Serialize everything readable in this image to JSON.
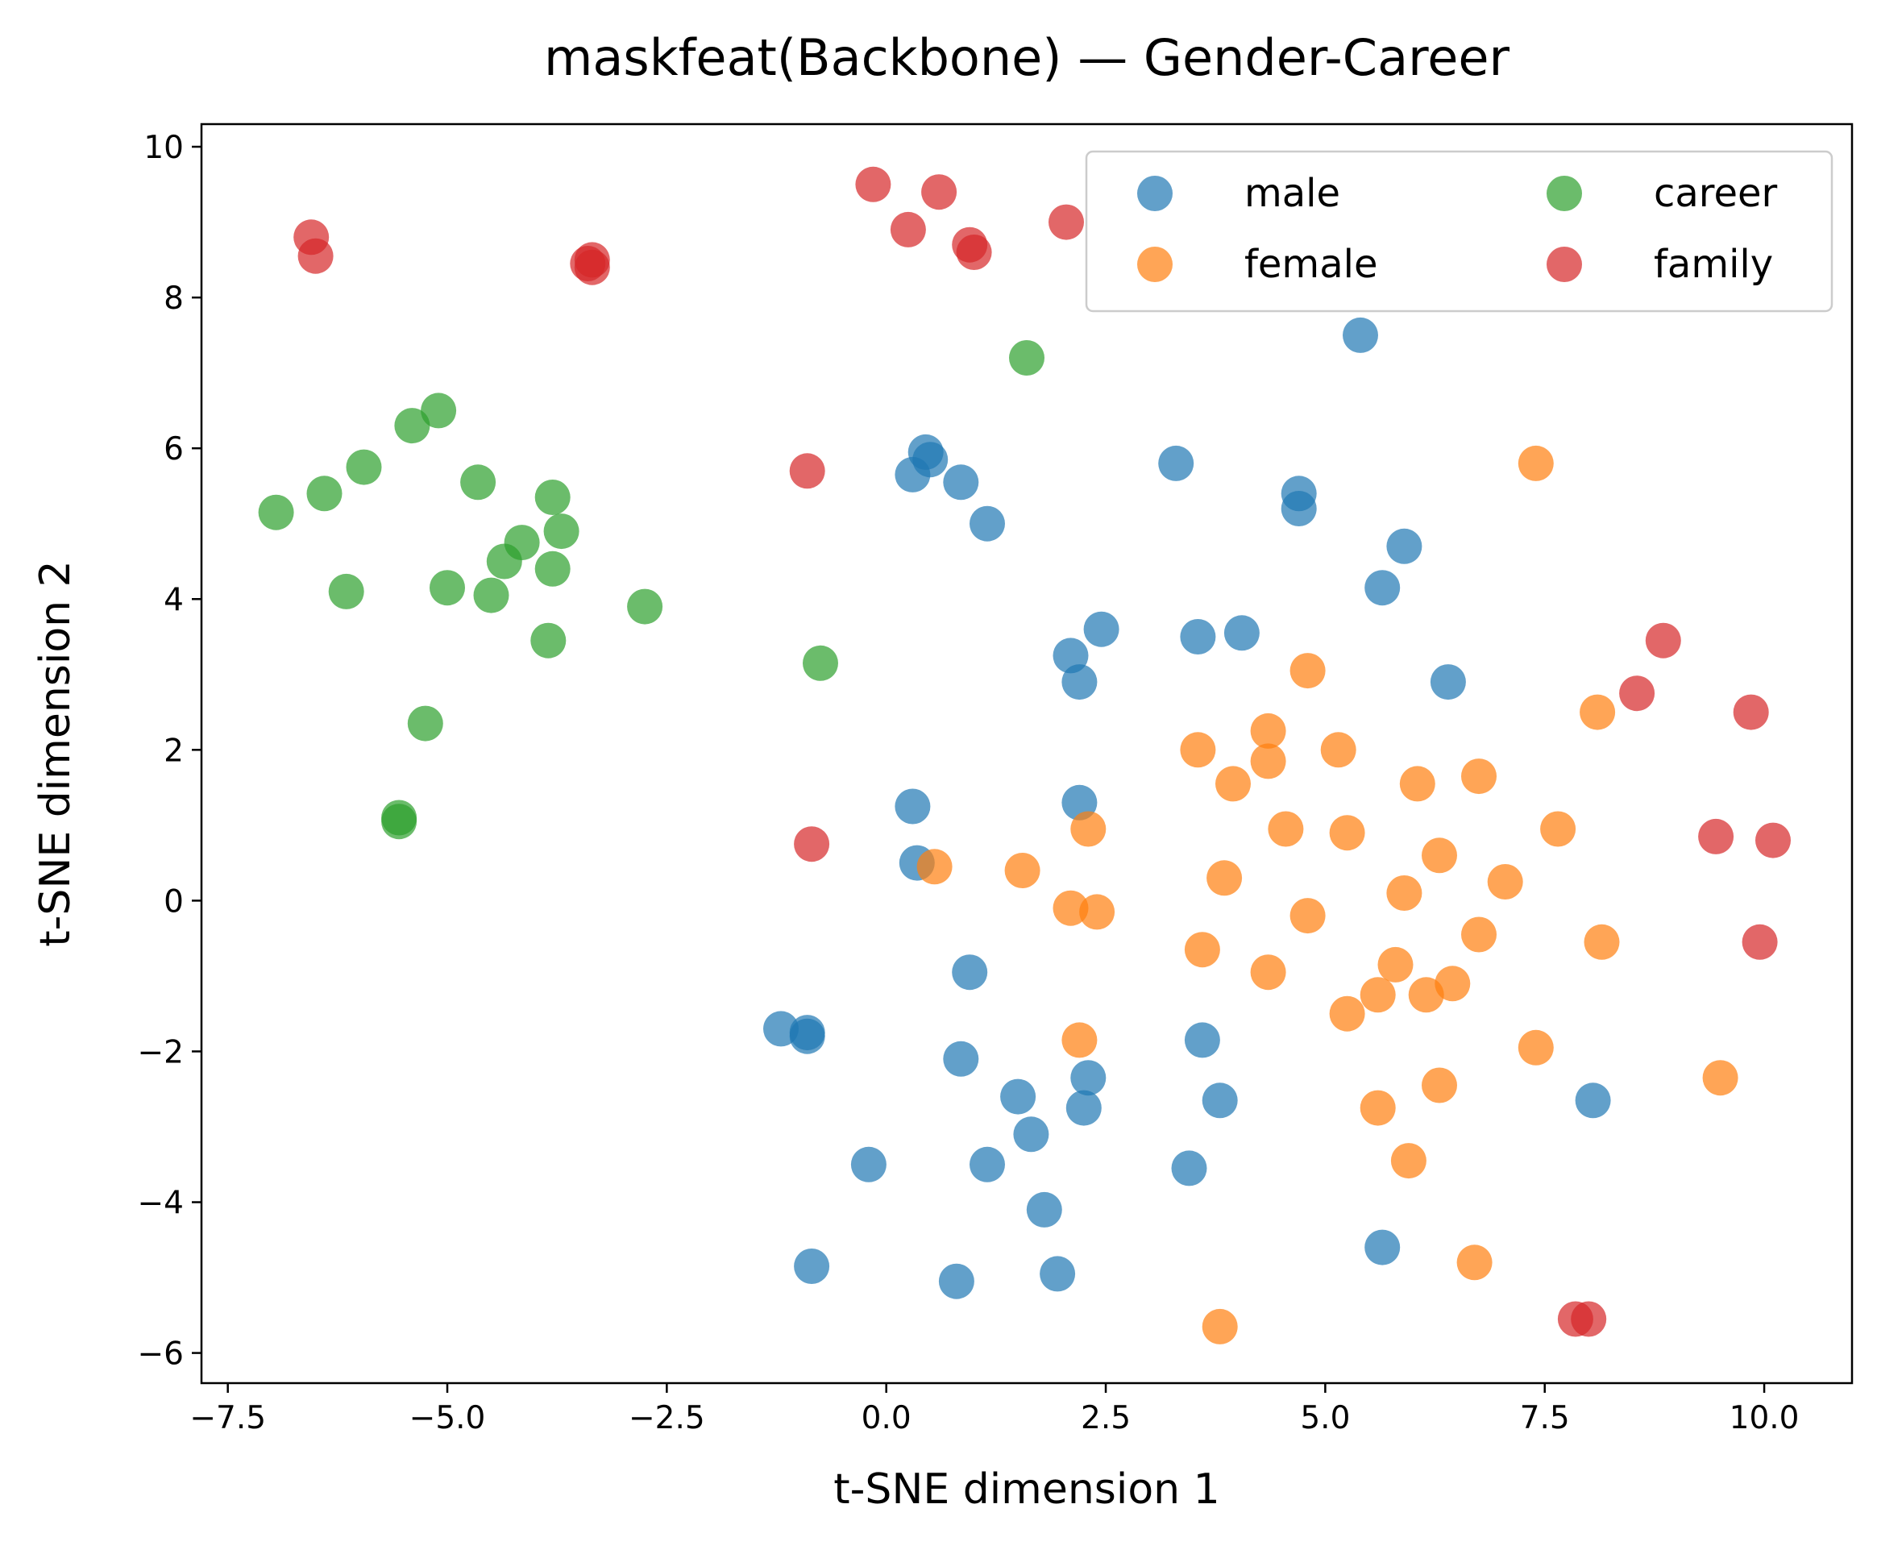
{
  "chart_data": {
    "type": "scatter",
    "title": "maskfeat(Backbone) — Gender-Career",
    "xlabel": "t-SNE dimension 1",
    "ylabel": "t-SNE dimension 2",
    "xlim": [
      -7.8,
      11.0
    ],
    "ylim": [
      -6.4,
      10.3
    ],
    "xticks": [
      -7.5,
      -5.0,
      -2.5,
      0.0,
      2.5,
      5.0,
      7.5,
      10.0
    ],
    "xtick_labels": [
      "−7.5",
      "−5.0",
      "−2.5",
      "0.0",
      "2.5",
      "5.0",
      "7.5",
      "10.0"
    ],
    "yticks": [
      -6,
      -4,
      -2,
      0,
      2,
      4,
      6,
      8,
      10
    ],
    "ytick_labels": [
      "−6",
      "−4",
      "−2",
      "0",
      "2",
      "4",
      "6",
      "8",
      "10"
    ],
    "grid": false,
    "legend_position": "top-right",
    "legend_columns": 2,
    "series": [
      {
        "name": "male",
        "color": "#1f77b4",
        "points": [
          [
            5.4,
            7.5
          ],
          [
            0.45,
            5.95
          ],
          [
            0.5,
            5.85
          ],
          [
            0.3,
            5.65
          ],
          [
            0.85,
            5.55
          ],
          [
            1.15,
            5.0
          ],
          [
            3.3,
            5.8
          ],
          [
            4.7,
            5.4
          ],
          [
            4.7,
            5.2
          ],
          [
            5.9,
            4.7
          ],
          [
            5.65,
            4.15
          ],
          [
            2.45,
            3.6
          ],
          [
            3.55,
            3.5
          ],
          [
            4.05,
            3.55
          ],
          [
            2.1,
            3.25
          ],
          [
            2.2,
            2.9
          ],
          [
            6.4,
            2.9
          ],
          [
            0.3,
            1.25
          ],
          [
            2.2,
            1.3
          ],
          [
            0.35,
            0.5
          ],
          [
            0.95,
            -0.95
          ],
          [
            -1.2,
            -1.7
          ],
          [
            -0.9,
            -1.75
          ],
          [
            -0.9,
            -1.8
          ],
          [
            0.85,
            -2.1
          ],
          [
            3.6,
            -1.85
          ],
          [
            2.3,
            -2.35
          ],
          [
            2.25,
            -2.75
          ],
          [
            1.5,
            -2.6
          ],
          [
            1.65,
            -3.1
          ],
          [
            3.8,
            -2.65
          ],
          [
            8.05,
            -2.65
          ],
          [
            -0.2,
            -3.5
          ],
          [
            1.15,
            -3.5
          ],
          [
            3.45,
            -3.55
          ],
          [
            1.8,
            -4.1
          ],
          [
            -0.85,
            -4.85
          ],
          [
            0.8,
            -5.05
          ],
          [
            1.95,
            -4.95
          ],
          [
            5.65,
            -4.6
          ]
        ]
      },
      {
        "name": "female",
        "color": "#ff7f0e",
        "points": [
          [
            7.4,
            5.8
          ],
          [
            4.8,
            3.05
          ],
          [
            8.1,
            2.5
          ],
          [
            3.55,
            2.0
          ],
          [
            4.35,
            2.25
          ],
          [
            5.15,
            2.0
          ],
          [
            4.35,
            1.85
          ],
          [
            3.95,
            1.55
          ],
          [
            6.05,
            1.55
          ],
          [
            6.75,
            1.65
          ],
          [
            4.55,
            0.95
          ],
          [
            5.25,
            0.9
          ],
          [
            7.65,
            0.95
          ],
          [
            2.3,
            0.95
          ],
          [
            6.3,
            0.6
          ],
          [
            0.55,
            0.45
          ],
          [
            1.55,
            0.4
          ],
          [
            3.85,
            0.3
          ],
          [
            5.9,
            0.1
          ],
          [
            7.05,
            0.25
          ],
          [
            2.1,
            -0.1
          ],
          [
            2.4,
            -0.15
          ],
          [
            4.8,
            -0.2
          ],
          [
            6.75,
            -0.45
          ],
          [
            8.15,
            -0.55
          ],
          [
            3.6,
            -0.65
          ],
          [
            4.35,
            -0.95
          ],
          [
            5.8,
            -0.85
          ],
          [
            5.6,
            -1.25
          ],
          [
            6.15,
            -1.25
          ],
          [
            6.45,
            -1.1
          ],
          [
            5.25,
            -1.5
          ],
          [
            2.2,
            -1.85
          ],
          [
            7.4,
            -1.95
          ],
          [
            9.5,
            -2.35
          ],
          [
            6.3,
            -2.45
          ],
          [
            5.6,
            -2.75
          ],
          [
            5.95,
            -3.45
          ],
          [
            6.7,
            -4.8
          ],
          [
            3.8,
            -5.65
          ]
        ]
      },
      {
        "name": "career",
        "color": "#2ca02c",
        "points": [
          [
            1.6,
            7.2
          ],
          [
            -5.1,
            6.5
          ],
          [
            -5.4,
            6.3
          ],
          [
            -5.95,
            5.75
          ],
          [
            -6.4,
            5.4
          ],
          [
            -6.95,
            5.15
          ],
          [
            -4.65,
            5.55
          ],
          [
            -3.8,
            5.35
          ],
          [
            -3.7,
            4.9
          ],
          [
            -4.15,
            4.75
          ],
          [
            -4.35,
            4.5
          ],
          [
            -3.8,
            4.4
          ],
          [
            -6.15,
            4.1
          ],
          [
            -5.0,
            4.15
          ],
          [
            -4.5,
            4.05
          ],
          [
            -2.75,
            3.9
          ],
          [
            -3.85,
            3.45
          ],
          [
            -0.75,
            3.15
          ],
          [
            -5.25,
            2.35
          ],
          [
            -5.55,
            1.1
          ],
          [
            -5.55,
            1.05
          ]
        ]
      },
      {
        "name": "family",
        "color": "#d62728",
        "points": [
          [
            -6.55,
            8.8
          ],
          [
            -6.5,
            8.55
          ],
          [
            -3.4,
            8.45
          ],
          [
            -3.35,
            8.4
          ],
          [
            -3.35,
            8.5
          ],
          [
            -0.15,
            9.5
          ],
          [
            0.6,
            9.4
          ],
          [
            0.25,
            8.9
          ],
          [
            0.95,
            8.7
          ],
          [
            1.0,
            8.6
          ],
          [
            2.05,
            9.0
          ],
          [
            -0.9,
            5.7
          ],
          [
            -0.85,
            0.75
          ],
          [
            8.85,
            3.45
          ],
          [
            8.55,
            2.75
          ],
          [
            9.85,
            2.5
          ],
          [
            9.45,
            0.85
          ],
          [
            10.1,
            0.8
          ],
          [
            9.95,
            -0.55
          ],
          [
            7.85,
            -5.55
          ],
          [
            8.0,
            -5.55
          ]
        ]
      }
    ]
  }
}
